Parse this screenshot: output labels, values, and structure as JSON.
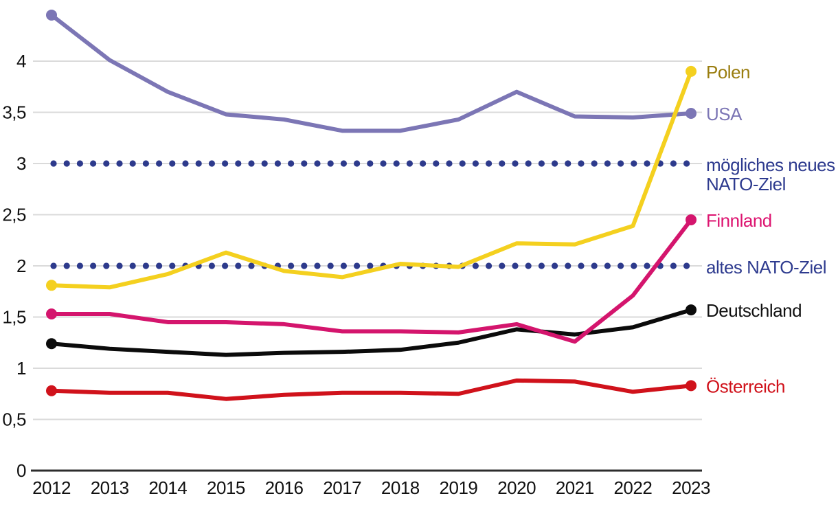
{
  "chart_data": {
    "type": "line",
    "title": "",
    "x_values": [
      2012,
      2013,
      2014,
      2015,
      2016,
      2017,
      2018,
      2019,
      2020,
      2021,
      2022,
      2023
    ],
    "x_tick_labels": [
      "2012",
      "2013",
      "2014",
      "2015",
      "2016",
      "2017",
      "2018",
      "2019",
      "2020",
      "2021",
      "2022",
      "2023"
    ],
    "y_ticks": [
      {
        "value": 0,
        "label": "0"
      },
      {
        "value": 0.5,
        "label": "0,5"
      },
      {
        "value": 1,
        "label": "1"
      },
      {
        "value": 1.5,
        "label": "1,5"
      },
      {
        "value": 2,
        "label": "2"
      },
      {
        "value": 2.5,
        "label": "2,5"
      },
      {
        "value": 3,
        "label": "3"
      },
      {
        "value": 3.5,
        "label": "3,5"
      },
      {
        "value": 4,
        "label": "4"
      }
    ],
    "ylim": [
      0,
      4.6
    ],
    "grid": "horizontal",
    "legend_position": "labels-at-line-ends-right",
    "series": [
      {
        "name": "USA",
        "color": "#7C76B5",
        "label_color": "#7C76B5",
        "values": [
          4.45,
          4.01,
          3.7,
          3.48,
          3.43,
          3.32,
          3.32,
          3.43,
          3.7,
          3.46,
          3.45,
          3.49
        ]
      },
      {
        "name": "Polen",
        "color": "#F4D01F",
        "label_color": "#9A7D0F",
        "values": [
          1.81,
          1.79,
          1.92,
          2.13,
          1.95,
          1.89,
          2.02,
          1.99,
          2.22,
          2.21,
          2.39,
          3.9
        ]
      },
      {
        "name": "Österreich",
        "color": "#D0121B",
        "label_color": "#D0121B",
        "values": [
          0.78,
          0.76,
          0.76,
          0.7,
          0.74,
          0.76,
          0.76,
          0.75,
          0.88,
          0.87,
          0.77,
          0.83
        ]
      },
      {
        "name": "Deutschland",
        "color": "#0B0B0B",
        "label_color": "#111111",
        "values": [
          1.24,
          1.19,
          1.16,
          1.13,
          1.15,
          1.16,
          1.18,
          1.25,
          1.38,
          1.33,
          1.4,
          1.57
        ]
      },
      {
        "name": "Finnland",
        "color": "#D4156D",
        "label_color": "#DD1470",
        "values": [
          1.53,
          1.53,
          1.45,
          1.45,
          1.43,
          1.36,
          1.36,
          1.35,
          1.43,
          1.26,
          1.71,
          2.45
        ]
      }
    ],
    "reference_lines": [
      {
        "label": "mögliches neues NATO-Ziel",
        "label_lines": [
          "mögliches neues",
          "NATO-Ziel"
        ],
        "value": 3,
        "style": "dotted",
        "color": "#2D3A8C",
        "label_color": "#2E3B8F"
      },
      {
        "label": "altes NATO-Ziel",
        "label_lines": [
          "altes NATO-Ziel"
        ],
        "value": 2,
        "style": "dotted",
        "color": "#2D3A8C",
        "label_color": "#2E3B8F"
      }
    ],
    "layout_colors": {
      "grid_color": "#DADADA",
      "axis_color": "#2D2D2D",
      "tick_text_color": "#111111",
      "background": "#FFFFFF"
    }
  }
}
